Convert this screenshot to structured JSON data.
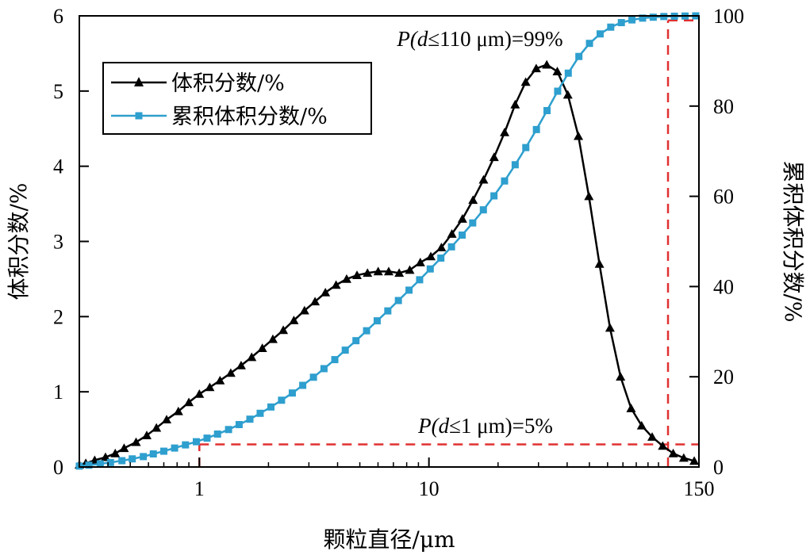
{
  "chart_data": {
    "type": "line",
    "x_scale": "log",
    "xlim": [
      0.3,
      150
    ],
    "xticks": [
      1,
      10,
      150
    ],
    "xlabel": "颗粒直径/μm",
    "ylabel_left": "体积分数/%",
    "ylim_left": [
      0,
      6
    ],
    "yticks_left": [
      0,
      1,
      2,
      3,
      4,
      5,
      6
    ],
    "ylabel_right": "累积体积分数/%",
    "ylim_right": [
      0,
      100
    ],
    "yticks_right": [
      0,
      20,
      40,
      60,
      80,
      100
    ],
    "grid": false,
    "legend_position": "top-left",
    "series": [
      {
        "name": "体积分数/%",
        "axis": "left",
        "marker": "triangle",
        "color": "#000000",
        "x": [
          0.3,
          0.32,
          0.35,
          0.39,
          0.43,
          0.47,
          0.53,
          0.59,
          0.65,
          0.72,
          0.81,
          0.9,
          1.0,
          1.11,
          1.23,
          1.37,
          1.52,
          1.69,
          1.88,
          2.09,
          2.32,
          2.58,
          2.87,
          3.19,
          3.54,
          3.94,
          4.38,
          4.86,
          5.4,
          6.01,
          6.68,
          7.42,
          8.25,
          9.17,
          10.19,
          11.33,
          12.59,
          13.99,
          15.56,
          17.29,
          19.22,
          21.36,
          23.74,
          26.39,
          29.33,
          32.6,
          36.24,
          40.28,
          44.77,
          49.76,
          55.31,
          61.48,
          68.33,
          75.95,
          84.42,
          93.83,
          104.3,
          115.9,
          128.8,
          143.1
        ],
        "y": [
          0.03,
          0.05,
          0.09,
          0.13,
          0.18,
          0.25,
          0.33,
          0.42,
          0.52,
          0.63,
          0.74,
          0.86,
          0.97,
          1.06,
          1.15,
          1.25,
          1.35,
          1.46,
          1.58,
          1.7,
          1.82,
          1.95,
          2.08,
          2.2,
          2.32,
          2.42,
          2.5,
          2.55,
          2.58,
          2.6,
          2.6,
          2.58,
          2.62,
          2.72,
          2.8,
          2.92,
          3.1,
          3.3,
          3.55,
          3.82,
          4.12,
          4.45,
          4.82,
          5.12,
          5.3,
          5.35,
          5.26,
          4.95,
          4.4,
          3.6,
          2.7,
          1.85,
          1.2,
          0.78,
          0.55,
          0.4,
          0.28,
          0.18,
          0.12,
          0.08
        ]
      },
      {
        "name": "累积体积分数/%",
        "axis": "right",
        "marker": "square",
        "color": "#2E9FCE",
        "x": [
          0.3,
          0.33,
          0.37,
          0.41,
          0.46,
          0.51,
          0.57,
          0.63,
          0.7,
          0.78,
          0.87,
          0.97,
          1.08,
          1.2,
          1.34,
          1.49,
          1.66,
          1.84,
          2.05,
          2.28,
          2.54,
          2.82,
          3.14,
          3.49,
          3.89,
          4.32,
          4.81,
          5.35,
          5.95,
          6.62,
          7.36,
          8.19,
          9.11,
          10.13,
          11.27,
          12.54,
          13.95,
          15.51,
          17.26,
          19.2,
          21.35,
          23.75,
          26.42,
          29.39,
          32.69,
          36.37,
          40.45,
          45.0,
          50.05,
          55.68,
          61.93,
          68.89,
          76.63,
          85.24,
          94.82,
          105.5,
          117.3,
          130.5,
          145.2
        ],
        "y": [
          0.2,
          0.4,
          0.7,
          1.0,
          1.4,
          1.8,
          2.3,
          2.9,
          3.5,
          4.2,
          4.9,
          5.6,
          6.4,
          7.3,
          8.3,
          9.4,
          10.6,
          11.9,
          13.3,
          14.8,
          16.4,
          18.1,
          19.9,
          21.8,
          23.8,
          25.9,
          28.0,
          30.2,
          32.4,
          34.6,
          36.9,
          39.2,
          41.5,
          43.9,
          46.3,
          48.8,
          51.4,
          54.1,
          57.0,
          60.1,
          63.4,
          67.0,
          70.8,
          74.8,
          79.0,
          83.3,
          87.3,
          91.0,
          93.9,
          96.0,
          97.5,
          98.5,
          99.1,
          99.5,
          99.7,
          99.85,
          99.92,
          99.96,
          100.0
        ]
      }
    ],
    "annotations": [
      {
        "text_prefix": "P(",
        "text_italic": "d",
        "text_suffix": "≤110 μm)=99%",
        "x": 110,
        "y_right": 99
      },
      {
        "text_prefix": "P(",
        "text_italic": "d",
        "text_suffix": "≤1 μm)=5%",
        "x": 1,
        "y_right": 5
      }
    ],
    "reference_color": "#E03030"
  }
}
